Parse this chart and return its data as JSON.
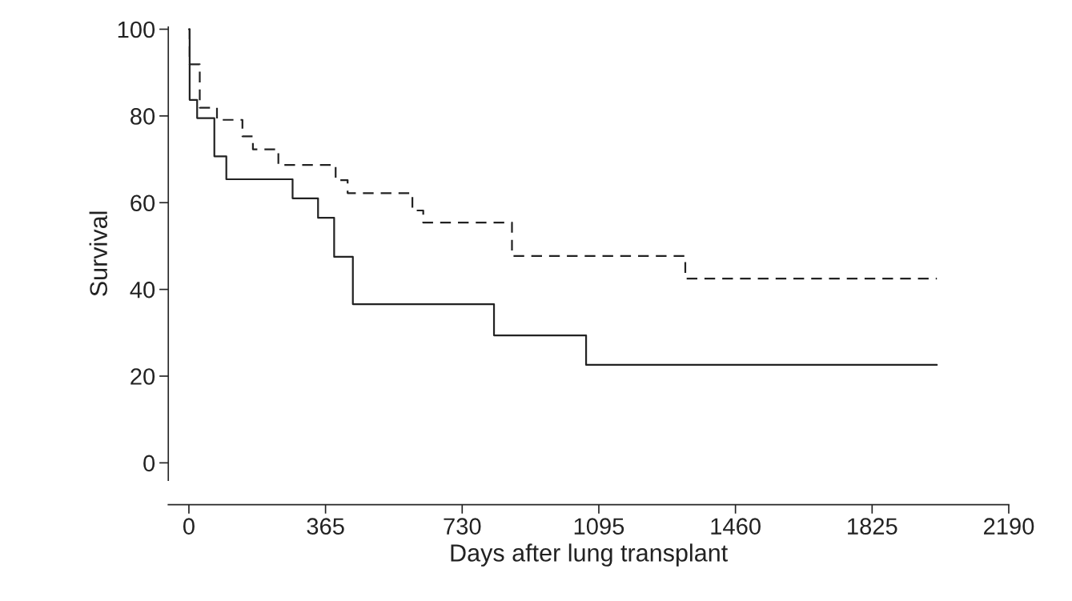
{
  "chart_data": {
    "type": "step",
    "xlabel": "Days after lung transplant",
    "ylabel": "Survival",
    "xlim": [
      -55,
      2190
    ],
    "ylim": [
      -4,
      100.5
    ],
    "xticks": [
      0,
      365,
      730,
      1095,
      1460,
      1825,
      2190
    ],
    "yticks": [
      0,
      20,
      40,
      60,
      80,
      100
    ],
    "series": [
      {
        "color": "#222222",
        "line_style": "solid",
        "x": [
          0,
          2,
          22,
          68,
          100,
          277,
          345,
          388,
          438,
          815,
          1061,
          1998
        ],
        "values": [
          100,
          83.7,
          79.5,
          70.7,
          65.4,
          61,
          56.5,
          47.5,
          36.6,
          29.4,
          22.6,
          22.6
        ]
      },
      {
        "color": "#222222",
        "line_style": "dashed",
        "x": [
          0,
          2,
          29,
          75,
          143,
          171,
          239,
          392,
          424,
          597,
          626,
          863,
          1326,
          1998
        ],
        "values": [
          100,
          91.9,
          81.9,
          79.1,
          75.3,
          72.3,
          68.7,
          65.2,
          62.2,
          58.2,
          55.4,
          47.7,
          42.5,
          42.5
        ]
      }
    ]
  }
}
